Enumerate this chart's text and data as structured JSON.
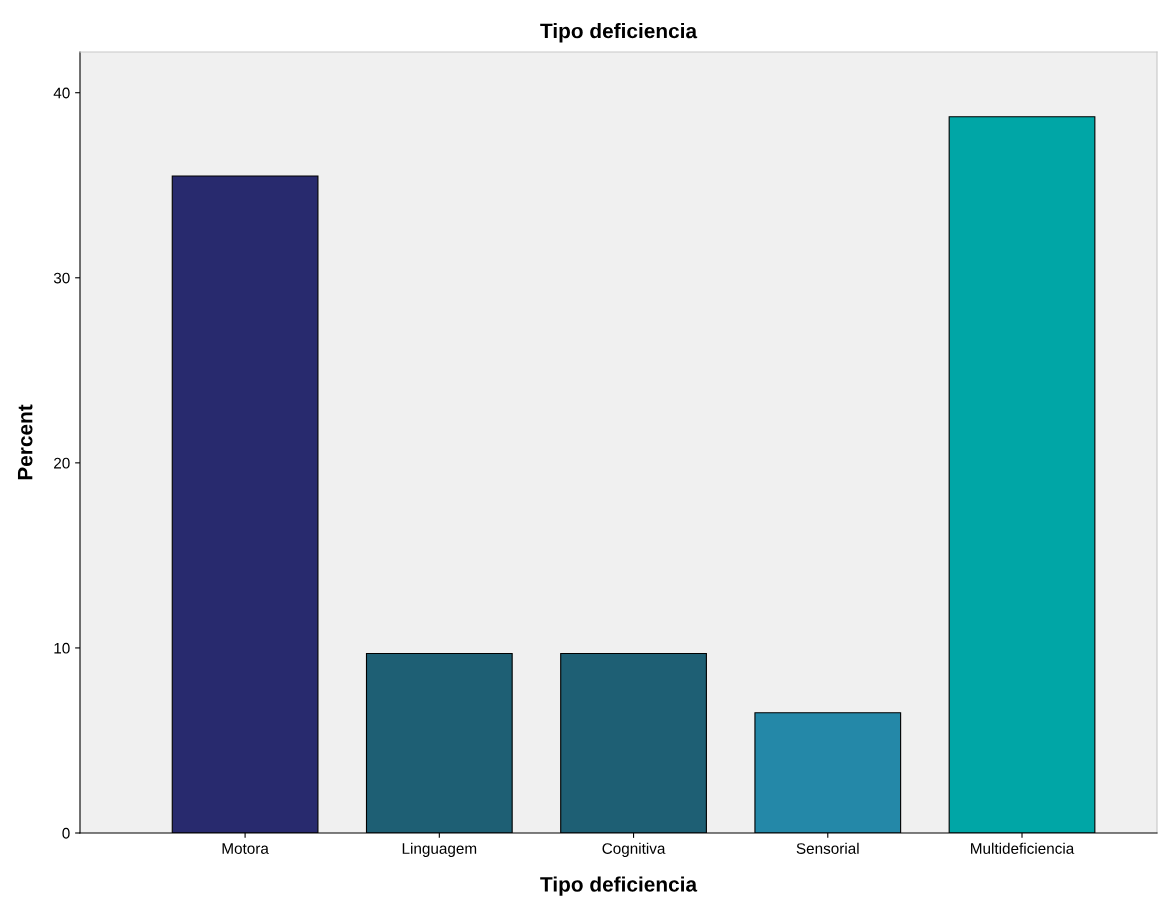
{
  "chart_data": {
    "type": "bar",
    "title": "Tipo deficiencia",
    "xlabel": "Tipo deficiencia",
    "ylabel": "Percent",
    "categories": [
      "Motora",
      "Linguagem",
      "Cognitiva",
      "Sensorial",
      "Multideficiencia"
    ],
    "values": [
      35.5,
      9.7,
      9.7,
      6.5,
      38.7
    ],
    "colors": [
      "#282a6e",
      "#1e5f74",
      "#1e5f74",
      "#2488a8",
      "#00a6a6"
    ],
    "ylim": [
      0,
      42.2
    ],
    "yticks": [
      0,
      10,
      20,
      30,
      40
    ],
    "grid": false
  }
}
